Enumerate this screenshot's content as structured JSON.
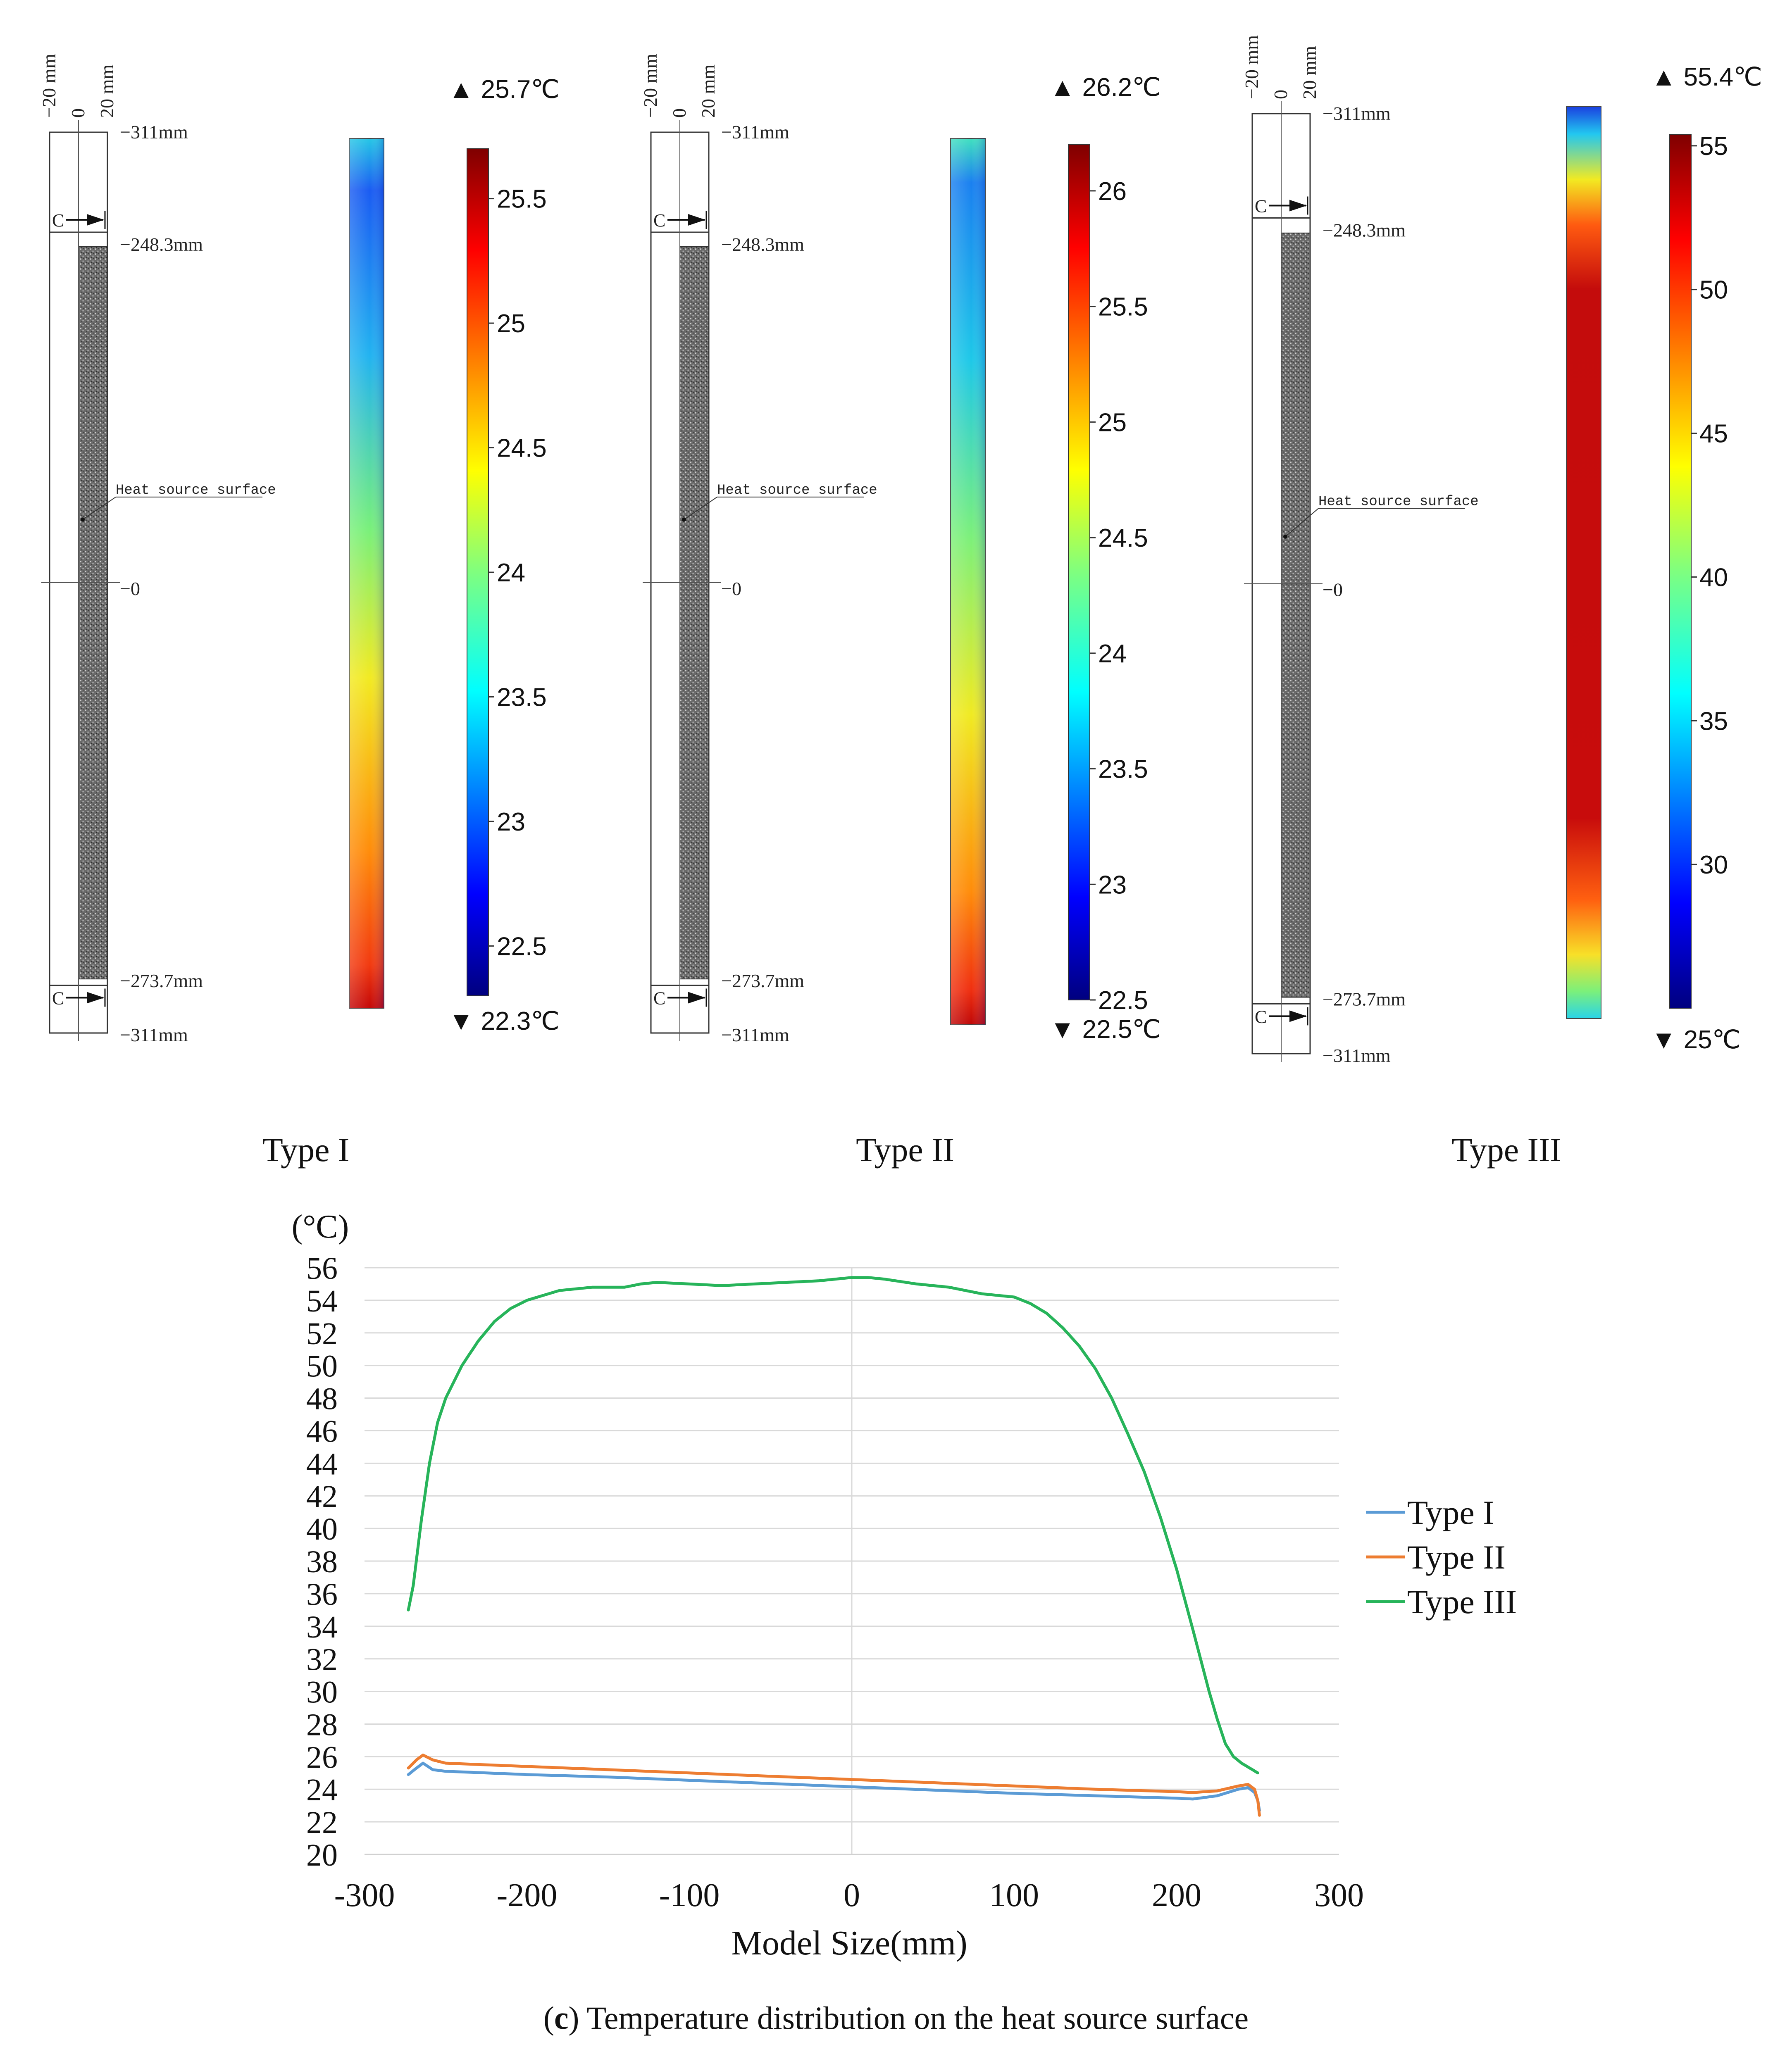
{
  "panels": [
    {
      "type_label": "Type I",
      "max_label": "▲ 25.7℃",
      "min_label": "▼ 22.3℃",
      "scale_min": 22.3,
      "scale_max": 25.7,
      "ticks": [
        "25.5",
        "25",
        "24.5",
        "24",
        "23.5",
        "23",
        "22.5"
      ],
      "tick_values": [
        25.5,
        25,
        24.5,
        24,
        23.5,
        23,
        22.5
      ],
      "colormap": "I"
    },
    {
      "type_label": "Type II",
      "max_label": "▲ 26.2℃",
      "min_label": "▼ 22.5℃",
      "scale_min": 22.5,
      "scale_max": 26.2,
      "ticks": [
        "26",
        "25.5",
        "25",
        "24.5",
        "24",
        "23.5",
        "23",
        "22.5"
      ],
      "tick_values": [
        26,
        25.5,
        25,
        24.5,
        24,
        23.5,
        23,
        22.5
      ],
      "colormap": "II"
    },
    {
      "type_label": "Type III",
      "max_label": "▲ 55.4℃",
      "min_label": "▼ 25℃",
      "scale_min": 25,
      "scale_max": 55.4,
      "ticks": [
        "55",
        "50",
        "45",
        "40",
        "35",
        "30"
      ],
      "tick_values": [
        55,
        50,
        45,
        40,
        35,
        30
      ],
      "colormap": "III"
    }
  ],
  "schematic": {
    "x_tick_neg": "−20 mm",
    "x_tick_zero": "0",
    "x_tick_pos": "20 mm",
    "top_dim": "311mm",
    "upper_dim": "248.3mm",
    "zero_dim": "0",
    "lower_dim": "273.7mm",
    "bottom_dim": "311mm",
    "section_label": "C",
    "surface_label": "Heat source surface"
  },
  "chart_data": {
    "type": "line",
    "unit_label": "(°C)",
    "xlabel": "Model Size(mm)",
    "xlim": [
      -300,
      300
    ],
    "ylim": [
      20,
      56
    ],
    "x_ticks": [
      -300,
      -200,
      -100,
      0,
      100,
      200,
      300
    ],
    "y_ticks": [
      20,
      22,
      24,
      26,
      28,
      30,
      32,
      34,
      36,
      38,
      40,
      42,
      44,
      46,
      48,
      50,
      52,
      54,
      56
    ],
    "legend_position": "right",
    "series": [
      {
        "name": "Type I",
        "color": "#5B9BD5",
        "x": [
          -273,
          -268,
          -264,
          -258,
          -250,
          -200,
          -150,
          -100,
          -50,
          0,
          50,
          100,
          150,
          200,
          210,
          225,
          238,
          244,
          248,
          250,
          251
        ],
        "y": [
          24.9,
          25.3,
          25.6,
          25.2,
          25.1,
          24.9,
          24.75,
          24.55,
          24.35,
          24.15,
          23.95,
          23.75,
          23.6,
          23.45,
          23.4,
          23.6,
          24.0,
          24.1,
          23.8,
          23.3,
          22.7
        ]
      },
      {
        "name": "Type II",
        "color": "#ED7D31",
        "x": [
          -273,
          -268,
          -264,
          -258,
          -250,
          -200,
          -150,
          -100,
          -50,
          0,
          50,
          100,
          150,
          200,
          210,
          225,
          238,
          244,
          248,
          250,
          251
        ],
        "y": [
          25.3,
          25.8,
          26.1,
          25.8,
          25.6,
          25.4,
          25.2,
          25.0,
          24.8,
          24.6,
          24.4,
          24.2,
          24.0,
          23.85,
          23.8,
          23.9,
          24.2,
          24.3,
          24.0,
          23.3,
          22.4
        ]
      },
      {
        "name": "Type III",
        "color": "#27B45A",
        "x": [
          -273,
          -270,
          -265,
          -260,
          -255,
          -250,
          -240,
          -230,
          -220,
          -210,
          -200,
          -180,
          -160,
          -140,
          -130,
          -120,
          -100,
          -80,
          -60,
          -40,
          -20,
          0,
          10,
          20,
          40,
          60,
          80,
          90,
          100,
          110,
          120,
          130,
          140,
          150,
          160,
          170,
          180,
          190,
          200,
          210,
          220,
          225,
          230,
          235,
          240,
          245,
          250
        ],
        "y": [
          35.0,
          36.5,
          40.5,
          44.0,
          46.5,
          48.0,
          50.0,
          51.5,
          52.7,
          53.5,
          54.0,
          54.6,
          54.8,
          54.8,
          55.0,
          55.1,
          55.0,
          54.9,
          55.0,
          55.1,
          55.2,
          55.4,
          55.4,
          55.3,
          55.0,
          54.8,
          54.4,
          54.3,
          54.2,
          53.8,
          53.2,
          52.3,
          51.2,
          49.8,
          48.0,
          45.8,
          43.5,
          40.7,
          37.5,
          33.8,
          30.0,
          28.3,
          26.8,
          26.0,
          25.6,
          25.3,
          25.0
        ]
      }
    ]
  },
  "caption": {
    "letter": "c",
    "open": "(",
    "close": ")",
    "text": " Temperature distribution on the heat source surface"
  }
}
